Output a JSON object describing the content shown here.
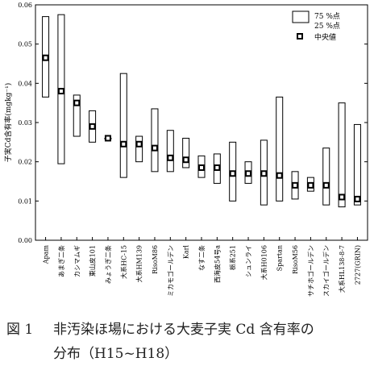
{
  "chart_data": {
    "type": "box",
    "ylabel": "子実Cd含有率(mgkg⁻¹)",
    "ylim": [
      0,
      0.06
    ],
    "yticks": [
      "0.00",
      "0.01",
      "0.02",
      "0.03",
      "0.04",
      "0.05",
      "0.06"
    ],
    "categories": [
      "Apam",
      "あまぎ二条",
      "カシマムギ",
      "東山皮101",
      "みょうぎ二条",
      "大系HC-15",
      "大系HM139",
      "RisoM86",
      "ミカモゴールデン",
      "Karl",
      "なす二条",
      "西海皮54号a",
      "栃系251",
      "シュンライ",
      "大系H0106",
      "Spartan",
      "RisoM56",
      "サチホゴールデン",
      "スカイゴールデン",
      "大系HL138-8-7",
      "2727(GRIN)"
    ],
    "q25": [
      0.0365,
      0.0195,
      0.0265,
      0.025,
      0.026,
      0.016,
      0.02,
      0.0175,
      0.0175,
      0.0185,
      0.016,
      0.0145,
      0.01,
      0.0145,
      0.009,
      0.01,
      0.0105,
      0.0125,
      0.009,
      0.0085,
      0.009
    ],
    "q75": [
      0.057,
      0.0575,
      0.037,
      0.033,
      0.026,
      0.0425,
      0.0265,
      0.0335,
      0.028,
      0.026,
      0.0215,
      0.022,
      0.025,
      0.02,
      0.0255,
      0.0365,
      0.0175,
      0.016,
      0.0235,
      0.035,
      0.0295
    ],
    "median": [
      0.0465,
      0.038,
      0.035,
      0.029,
      0.026,
      0.0245,
      0.0245,
      0.0235,
      0.021,
      0.0205,
      0.0185,
      0.0185,
      0.017,
      0.017,
      0.017,
      0.0165,
      0.014,
      0.014,
      0.014,
      0.011,
      0.0105
    ],
    "legend": {
      "box_label_1": "75 %点",
      "box_label_2": "25 %点",
      "median_label": "中央値"
    },
    "legend_position": "top-right",
    "grid": false
  },
  "caption": {
    "number": "図 1",
    "line1": "非汚染ほ場における大麦子実 Cd 含有率の",
    "line2": "分布（H15~H18）"
  }
}
